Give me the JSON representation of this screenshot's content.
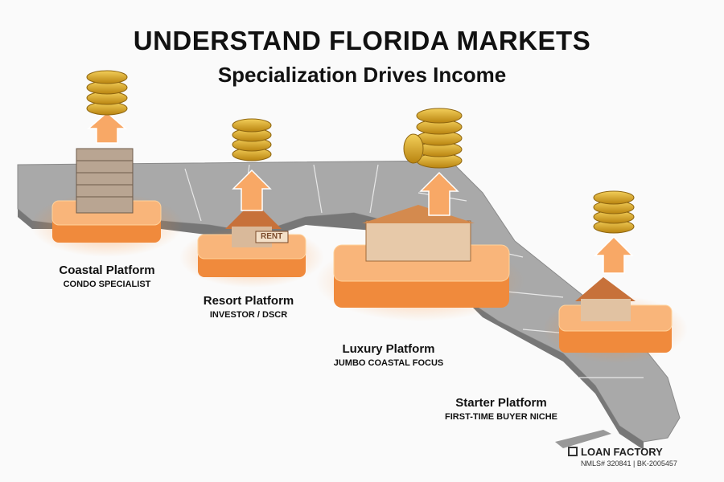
{
  "header": {
    "title": "UNDERSTAND FLORIDA MARKETS",
    "subtitle": "Specialization Drives Income"
  },
  "colors": {
    "platform": "#f7a35c",
    "glow": "#ff8a2a",
    "map": "#9e9e9e",
    "coin": "#d9a521"
  },
  "platforms": [
    {
      "name": "Coastal Platform",
      "niche": "CONDO SPECIALIST",
      "icon": "condo-tower-icon"
    },
    {
      "name": "Resort Platform",
      "niche": "INVESTOR / DSCR",
      "icon": "rental-house-icon",
      "sign": "RENT"
    },
    {
      "name": "Luxury Platform",
      "niche": "JUMBO COASTAL FOCUS",
      "icon": "mansion-icon"
    },
    {
      "name": "Starter Platform",
      "niche": "FIRST-TIME BUYER NICHE",
      "icon": "starter-home-icon"
    }
  ],
  "footer": {
    "brand": "LOAN FACTORY",
    "registration": "NMLS# 320841 | BK-2005457"
  }
}
